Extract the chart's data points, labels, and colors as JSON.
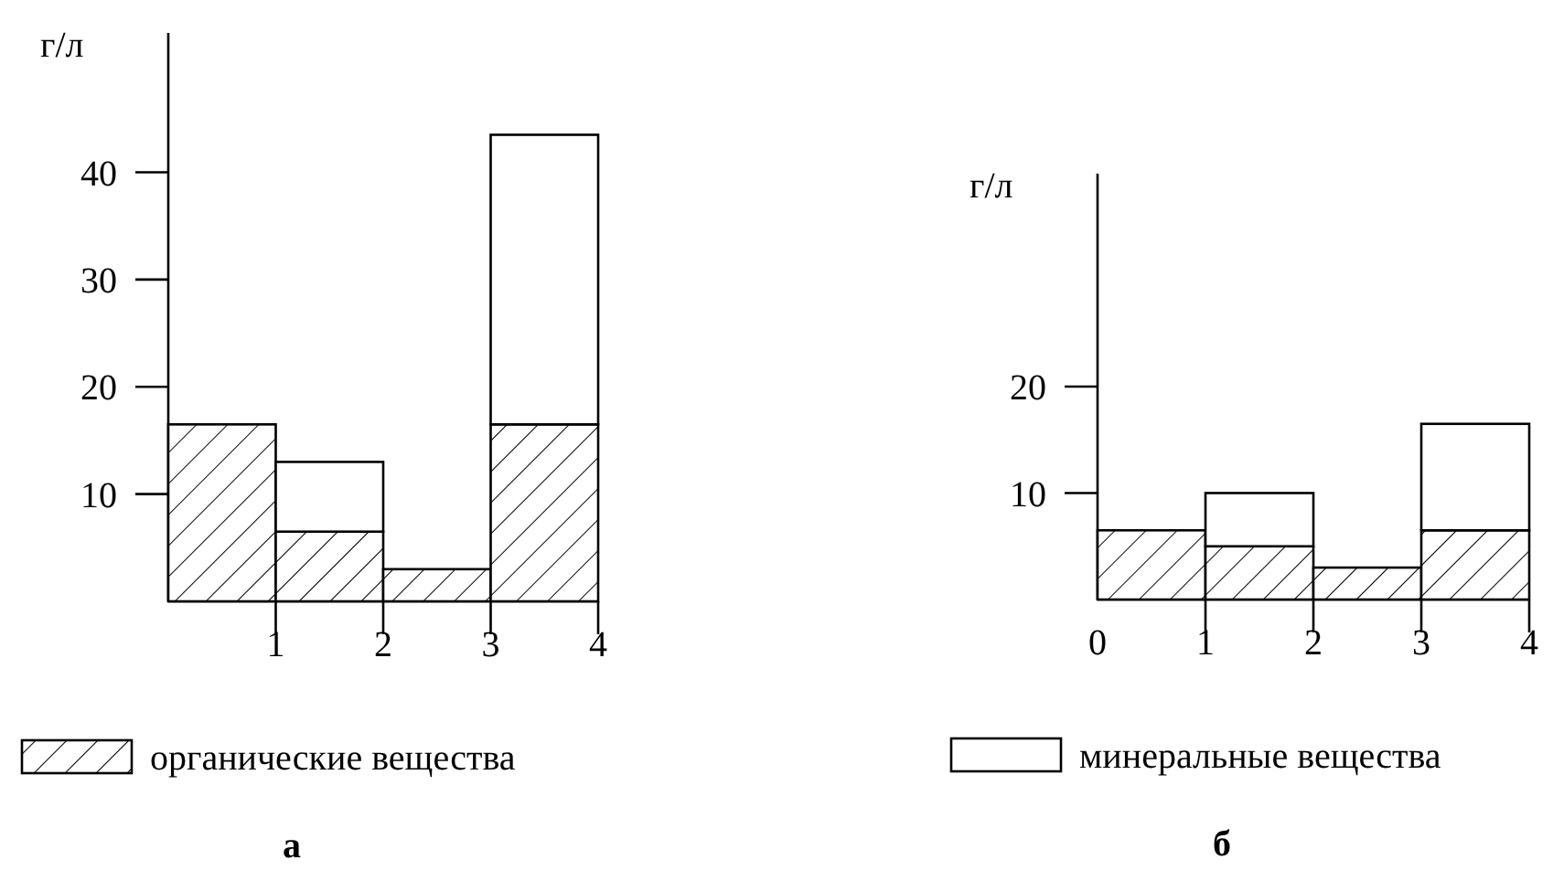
{
  "chart_data": [
    {
      "type": "bar",
      "title": "а",
      "ylabel": "г/л",
      "stacked": true,
      "x": [
        0.5,
        1.5,
        2.5,
        3.5
      ],
      "xlim": [
        0,
        4
      ],
      "xticks": [
        1,
        2,
        3,
        4
      ],
      "ylim": [
        0,
        53
      ],
      "yticks": [
        10,
        20,
        30,
        40
      ],
      "legend": "bottom",
      "grid": false,
      "series": [
        {
          "name": "органические вещества",
          "color": "#000000",
          "values": [
            16.5,
            6.5,
            3,
            16.5
          ]
        },
        {
          "color": "#ffffff",
          "values": [
            0,
            6.5,
            0,
            27
          ]
        }
      ]
    },
    {
      "type": "bar",
      "title": "б",
      "ylabel": "г/л",
      "stacked": true,
      "x": [
        0.5,
        1.5,
        2.5,
        3.5
      ],
      "xlim": [
        0,
        4
      ],
      "xticks": [
        0,
        1,
        2,
        3,
        4
      ],
      "ylim": [
        0,
        40
      ],
      "yticks": [
        10,
        20
      ],
      "legend": "bottom",
      "grid": false,
      "series": [
        {
          "color": "#000000",
          "values": [
            6.5,
            5,
            3,
            6.5
          ]
        },
        {
          "name": "минеральные вещества",
          "color": "#ffffff",
          "values": [
            0,
            5,
            0,
            10
          ]
        }
      ]
    }
  ]
}
